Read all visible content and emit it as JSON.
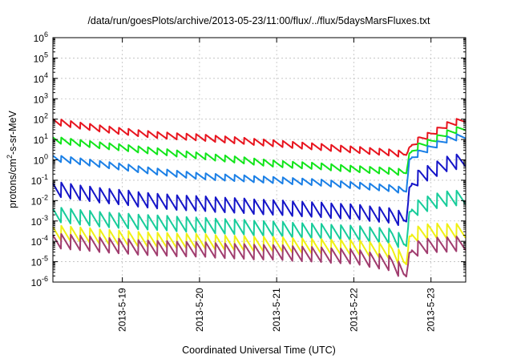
{
  "chart_data": {
    "type": "line",
    "title": "/data/run/goesPlots/archive/2013-05-23/11:00/flux/../flux/5daysMarsFluxes.txt",
    "xlabel": "Coordinated Universal Time (UTC)",
    "ylabel": {
      "base": "protons/cm",
      "sup": "2",
      "rest": "-s-sr-MeV"
    },
    "yscale": "log",
    "ylim_exponents": [
      -6,
      6
    ],
    "y_tick_exponents": [
      -6,
      -5,
      -4,
      -3,
      -2,
      -1,
      0,
      1,
      2,
      3,
      4,
      5,
      6
    ],
    "y_tick_base": "10",
    "xlim_days": [
      18.1,
      23.45
    ],
    "x_ticks": [
      {
        "day": 19,
        "label": "2013-5-19"
      },
      {
        "day": 20,
        "label": "2013-5-20"
      },
      {
        "day": 21,
        "label": "2013-5-21"
      },
      {
        "day": 22,
        "label": "2013-5-22"
      },
      {
        "day": 23,
        "label": "2013-5-23"
      }
    ],
    "grid": true,
    "sawtooth_period_days": 0.125,
    "event_onset_day": 22.7,
    "series": [
      {
        "color": "#e8141e",
        "log10_level_at_day": [
          [
            18.1,
            1.9
          ],
          [
            18.5,
            1.65
          ],
          [
            19.0,
            1.4
          ],
          [
            19.5,
            1.2
          ],
          [
            20.0,
            1.1
          ],
          [
            20.5,
            0.95
          ],
          [
            21.0,
            0.8
          ],
          [
            21.5,
            0.65
          ],
          [
            22.0,
            0.5
          ],
          [
            22.5,
            0.35
          ],
          [
            22.68,
            0.25
          ],
          [
            22.72,
            0.6
          ],
          [
            22.85,
            1.0
          ],
          [
            23.0,
            1.25
          ],
          [
            23.2,
            1.7
          ],
          [
            23.45,
            2.0
          ]
        ]
      },
      {
        "color": "#11e51a",
        "log10_level_at_day": [
          [
            18.1,
            1.0
          ],
          [
            18.5,
            0.8
          ],
          [
            19.0,
            0.6
          ],
          [
            19.5,
            0.4
          ],
          [
            20.0,
            0.2
          ],
          [
            20.5,
            0.0
          ],
          [
            21.0,
            -0.2
          ],
          [
            21.5,
            -0.3
          ],
          [
            22.0,
            -0.45
          ],
          [
            22.5,
            -0.55
          ],
          [
            22.68,
            -0.65
          ],
          [
            22.72,
            0.3
          ],
          [
            22.85,
            0.7
          ],
          [
            23.0,
            0.9
          ],
          [
            23.2,
            1.3
          ],
          [
            23.45,
            1.6
          ]
        ]
      },
      {
        "color": "#1a7fe6",
        "log10_level_at_day": [
          [
            18.1,
            0.1
          ],
          [
            18.5,
            -0.1
          ],
          [
            19.0,
            -0.35
          ],
          [
            19.5,
            -0.6
          ],
          [
            20.0,
            -0.8
          ],
          [
            20.5,
            -0.9
          ],
          [
            21.0,
            -1.0
          ],
          [
            21.5,
            -1.1
          ],
          [
            22.0,
            -1.25
          ],
          [
            22.5,
            -1.4
          ],
          [
            22.68,
            -1.55
          ],
          [
            22.72,
            0.0
          ],
          [
            22.85,
            0.35
          ],
          [
            23.0,
            0.6
          ],
          [
            23.2,
            1.0
          ],
          [
            23.45,
            1.2
          ]
        ]
      },
      {
        "color": "#1414c8",
        "log10_level_at_day": [
          [
            18.1,
            -1.4
          ],
          [
            18.5,
            -1.65
          ],
          [
            19.0,
            -1.85
          ],
          [
            19.5,
            -2.05
          ],
          [
            20.0,
            -2.15
          ],
          [
            20.5,
            -2.25
          ],
          [
            21.0,
            -2.35
          ],
          [
            21.5,
            -2.45
          ],
          [
            22.0,
            -2.55
          ],
          [
            22.5,
            -2.75
          ],
          [
            22.68,
            -3.0
          ],
          [
            22.72,
            -1.4
          ],
          [
            22.85,
            -0.8
          ],
          [
            23.0,
            -0.6
          ],
          [
            23.2,
            -0.2
          ],
          [
            23.45,
            0.0
          ]
        ]
      },
      {
        "color": "#17cc9a",
        "log10_level_at_day": [
          [
            18.1,
            -2.65
          ],
          [
            18.5,
            -2.85
          ],
          [
            19.0,
            -3.0
          ],
          [
            19.5,
            -3.1
          ],
          [
            20.0,
            -3.2
          ],
          [
            20.5,
            -3.3
          ],
          [
            21.0,
            -3.4
          ],
          [
            21.5,
            -3.5
          ],
          [
            22.0,
            -3.6
          ],
          [
            22.5,
            -3.75
          ],
          [
            22.68,
            -4.2
          ],
          [
            22.72,
            -2.6
          ],
          [
            22.85,
            -2.3
          ],
          [
            23.0,
            -2.1
          ],
          [
            23.2,
            -1.9
          ],
          [
            23.45,
            -1.85
          ]
        ]
      },
      {
        "color": "#f0f014",
        "log10_level_at_day": [
          [
            18.1,
            -3.55
          ],
          [
            18.5,
            -3.7
          ],
          [
            19.0,
            -3.85
          ],
          [
            19.5,
            -3.95
          ],
          [
            20.0,
            -4.0
          ],
          [
            20.5,
            -4.1
          ],
          [
            21.0,
            -4.15
          ],
          [
            21.5,
            -4.25
          ],
          [
            22.0,
            -4.3
          ],
          [
            22.5,
            -4.5
          ],
          [
            22.68,
            -5.1
          ],
          [
            22.72,
            -3.8
          ],
          [
            22.85,
            -3.6
          ],
          [
            23.0,
            -3.5
          ],
          [
            23.2,
            -3.5
          ],
          [
            23.45,
            -3.5
          ]
        ]
      },
      {
        "color": "#a03c6e",
        "log10_level_at_day": [
          [
            18.1,
            -3.95
          ],
          [
            18.5,
            -4.1
          ],
          [
            19.0,
            -4.25
          ],
          [
            19.5,
            -4.35
          ],
          [
            20.0,
            -4.4
          ],
          [
            20.5,
            -4.5
          ],
          [
            21.0,
            -4.55
          ],
          [
            21.5,
            -4.65
          ],
          [
            22.0,
            -4.75
          ],
          [
            22.5,
            -5.1
          ],
          [
            22.68,
            -5.7
          ],
          [
            22.72,
            -4.6
          ],
          [
            22.85,
            -4.3
          ],
          [
            23.0,
            -4.2
          ],
          [
            23.2,
            -4.15
          ],
          [
            23.45,
            -4.1
          ]
        ]
      }
    ]
  }
}
